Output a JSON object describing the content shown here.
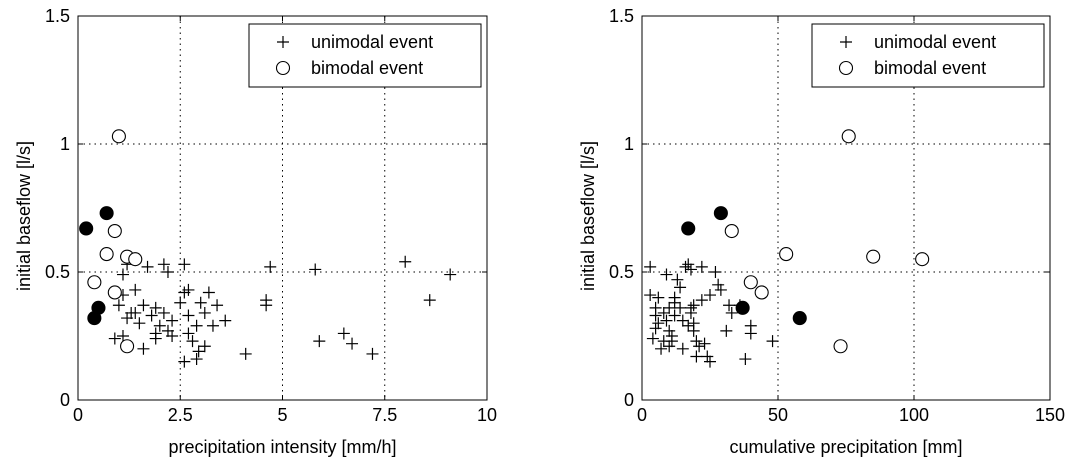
{
  "chart_data": [
    {
      "type": "scatter",
      "xlabel": "precipitation intensity [mm/h]",
      "ylabel": "initial baseflow [l/s]",
      "xlim": [
        0,
        10
      ],
      "ylim": [
        0,
        1.5
      ],
      "xticks": [
        "0",
        "2.5",
        "5",
        "7.5",
        "10"
      ],
      "yticks": [
        "0",
        "0.5",
        "1",
        "1.5"
      ],
      "grid": true,
      "legend": {
        "placement": "top-right",
        "entries": [
          "unimodal event",
          "bimodal event"
        ]
      },
      "series": [
        {
          "name": "unimodal event",
          "marker": "plus",
          "points": [
            [
              1.1,
              0.49
            ],
            [
              1.2,
              0.53
            ],
            [
              1.1,
              0.41
            ],
            [
              1.0,
              0.37
            ],
            [
              1.2,
              0.32
            ],
            [
              0.9,
              0.24
            ],
            [
              1.1,
              0.25
            ],
            [
              1.3,
              0.34
            ],
            [
              1.4,
              0.34
            ],
            [
              1.5,
              0.3
            ],
            [
              1.4,
              0.43
            ],
            [
              1.6,
              0.37
            ],
            [
              1.8,
              0.33
            ],
            [
              1.9,
              0.26
            ],
            [
              1.6,
              0.2
            ],
            [
              1.9,
              0.24
            ],
            [
              2.0,
              0.29
            ],
            [
              2.1,
              0.34
            ],
            [
              2.1,
              0.53
            ],
            [
              2.2,
              0.27
            ],
            [
              2.3,
              0.25
            ],
            [
              1.9,
              0.36
            ],
            [
              2.2,
              0.5
            ],
            [
              2.6,
              0.53
            ],
            [
              2.6,
              0.42
            ],
            [
              2.7,
              0.33
            ],
            [
              2.7,
              0.26
            ],
            [
              2.6,
              0.15
            ],
            [
              2.9,
              0.16
            ],
            [
              2.8,
              0.23
            ],
            [
              2.9,
              0.29
            ],
            [
              3.0,
              0.38
            ],
            [
              3.1,
              0.21
            ],
            [
              3.1,
              0.34
            ],
            [
              3.2,
              0.42
            ],
            [
              3.3,
              0.29
            ],
            [
              3.4,
              0.37
            ],
            [
              3.6,
              0.31
            ],
            [
              2.5,
              0.38
            ],
            [
              2.7,
              0.43
            ],
            [
              4.1,
              0.18
            ],
            [
              4.6,
              0.37
            ],
            [
              4.6,
              0.39
            ],
            [
              4.7,
              0.52
            ],
            [
              5.8,
              0.51
            ],
            [
              5.9,
              0.23
            ],
            [
              6.5,
              0.26
            ],
            [
              6.7,
              0.22
            ],
            [
              7.2,
              0.18
            ],
            [
              8.0,
              0.54
            ],
            [
              8.6,
              0.39
            ],
            [
              9.1,
              0.49
            ],
            [
              1.7,
              0.52
            ],
            [
              2.3,
              0.31
            ],
            [
              2.95,
              0.19
            ]
          ]
        },
        {
          "name": "bimodal event",
          "marker": "circle-open",
          "points": [
            [
              1.0,
              1.03
            ],
            [
              0.7,
              0.57
            ],
            [
              0.9,
              0.66
            ],
            [
              1.2,
              0.56
            ],
            [
              1.4,
              0.55
            ],
            [
              0.4,
              0.46
            ],
            [
              0.9,
              0.42
            ],
            [
              1.2,
              0.21
            ]
          ]
        },
        {
          "name": "",
          "marker": "circle-filled",
          "points": [
            [
              0.2,
              0.67
            ],
            [
              0.7,
              0.73
            ],
            [
              0.5,
              0.36
            ],
            [
              0.4,
              0.32
            ]
          ]
        }
      ]
    },
    {
      "type": "scatter",
      "xlabel": "cumulative precipitation [mm]",
      "ylabel": "initial baseflow [l/s]",
      "xlim": [
        0,
        150
      ],
      "ylim": [
        0,
        1.5
      ],
      "xticks": [
        "0",
        "50",
        "100",
        "150"
      ],
      "yticks": [
        "0",
        "0.5",
        "1",
        "1.5"
      ],
      "grid": true,
      "legend": {
        "placement": "top-right",
        "entries": [
          "unimodal event",
          "bimodal event"
        ]
      },
      "series": [
        {
          "name": "unimodal event",
          "marker": "plus",
          "points": [
            [
              3,
              0.52
            ],
            [
              3,
              0.41
            ],
            [
              4,
              0.24
            ],
            [
              5,
              0.36
            ],
            [
              5,
              0.33
            ],
            [
              6,
              0.3
            ],
            [
              6,
              0.4
            ],
            [
              7,
              0.2
            ],
            [
              8,
              0.23
            ],
            [
              8,
              0.34
            ],
            [
              9,
              0.49
            ],
            [
              9,
              0.31
            ],
            [
              10,
              0.36
            ],
            [
              10,
              0.27
            ],
            [
              11,
              0.23
            ],
            [
              11,
              0.25
            ],
            [
              12,
              0.38
            ],
            [
              12,
              0.4
            ],
            [
              12,
              0.33
            ],
            [
              13,
              0.47
            ],
            [
              14,
              0.36
            ],
            [
              15,
              0.31
            ],
            [
              15,
              0.2
            ],
            [
              16,
              0.52
            ],
            [
              17,
              0.53
            ],
            [
              17,
              0.29
            ],
            [
              18,
              0.51
            ],
            [
              18,
              0.34
            ],
            [
              18,
              0.36
            ],
            [
              19,
              0.27
            ],
            [
              19,
              0.3
            ],
            [
              19,
              0.37
            ],
            [
              20,
              0.17
            ],
            [
              20,
              0.23
            ],
            [
              21,
              0.21
            ],
            [
              22,
              0.52
            ],
            [
              22,
              0.39
            ],
            [
              23,
              0.22
            ],
            [
              24,
              0.17
            ],
            [
              25,
              0.15
            ],
            [
              25,
              0.41
            ],
            [
              27,
              0.5
            ],
            [
              28,
              0.45
            ],
            [
              29,
              0.43
            ],
            [
              31,
              0.27
            ],
            [
              32,
              0.37
            ],
            [
              33,
              0.34
            ],
            [
              36,
              0.37
            ],
            [
              38,
              0.16
            ],
            [
              40,
              0.26
            ],
            [
              40,
              0.29
            ],
            [
              48,
              0.23
            ],
            [
              14,
              0.44
            ],
            [
              10,
              0.21
            ],
            [
              5,
              0.28
            ]
          ]
        },
        {
          "name": "bimodal event",
          "marker": "circle-open",
          "points": [
            [
              76,
              1.03
            ],
            [
              33,
              0.66
            ],
            [
              53,
              0.57
            ],
            [
              85,
              0.56
            ],
            [
              103,
              0.55
            ],
            [
              40,
              0.46
            ],
            [
              44,
              0.42
            ],
            [
              73,
              0.21
            ]
          ]
        },
        {
          "name": "",
          "marker": "circle-filled",
          "points": [
            [
              17,
              0.67
            ],
            [
              29,
              0.73
            ],
            [
              37,
              0.36
            ],
            [
              58,
              0.32
            ]
          ]
        }
      ]
    }
  ]
}
